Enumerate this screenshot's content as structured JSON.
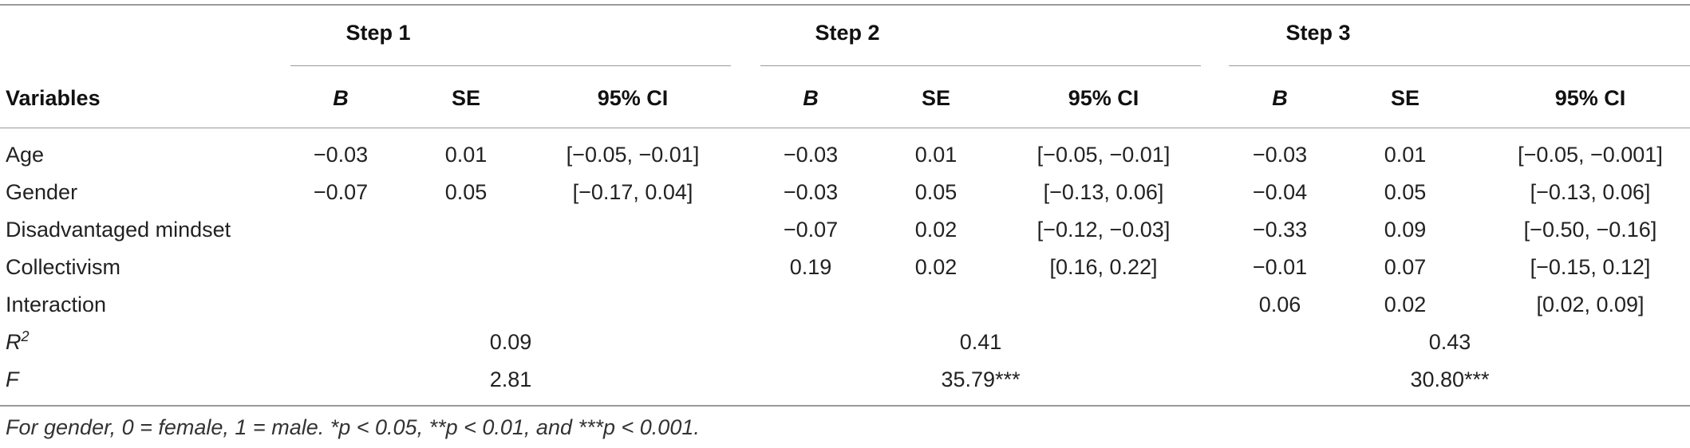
{
  "table": {
    "steps": [
      "Step 1",
      "Step 2",
      "Step 3"
    ],
    "variables_header": "Variables",
    "col_headers": [
      "B",
      "SE",
      "95% CI"
    ],
    "rows": [
      {
        "label": "Age",
        "cells": [
          "−0.03",
          "0.01",
          "[−0.05, −0.01]",
          "−0.03",
          "0.01",
          "[−0.05, −0.01]",
          "−0.03",
          "0.01",
          "[−0.05, −0.001]"
        ]
      },
      {
        "label": "Gender",
        "cells": [
          "−0.07",
          "0.05",
          "[−0.17, 0.04]",
          "−0.03",
          "0.05",
          "[−0.13, 0.06]",
          "−0.04",
          "0.05",
          "[−0.13, 0.06]"
        ]
      },
      {
        "label": "Disadvantaged mindset",
        "cells": [
          "",
          "",
          "",
          "−0.07",
          "0.02",
          "[−0.12, −0.03]",
          "−0.33",
          "0.09",
          "[−0.50, −0.16]"
        ]
      },
      {
        "label": "Collectivism",
        "cells": [
          "",
          "",
          "",
          "0.19",
          "0.02",
          "[0.16, 0.22]",
          "−0.01",
          "0.07",
          "[−0.15, 0.12]"
        ]
      },
      {
        "label": "Interaction",
        "cells": [
          "",
          "",
          "",
          "",
          "",
          "",
          "0.06",
          "0.02",
          "[0.02, 0.09]"
        ]
      }
    ],
    "r2": {
      "label_base": "R",
      "label_sup": "2",
      "values": [
        "0.09",
        "0.41",
        "0.43"
      ]
    },
    "f": {
      "label": "F",
      "values": [
        "2.81",
        "35.79***",
        "30.80***"
      ]
    }
  },
  "footnote": "For gender, 0 = female, 1 = male. *p < 0.05, **p < 0.01, and ***p < 0.001."
}
